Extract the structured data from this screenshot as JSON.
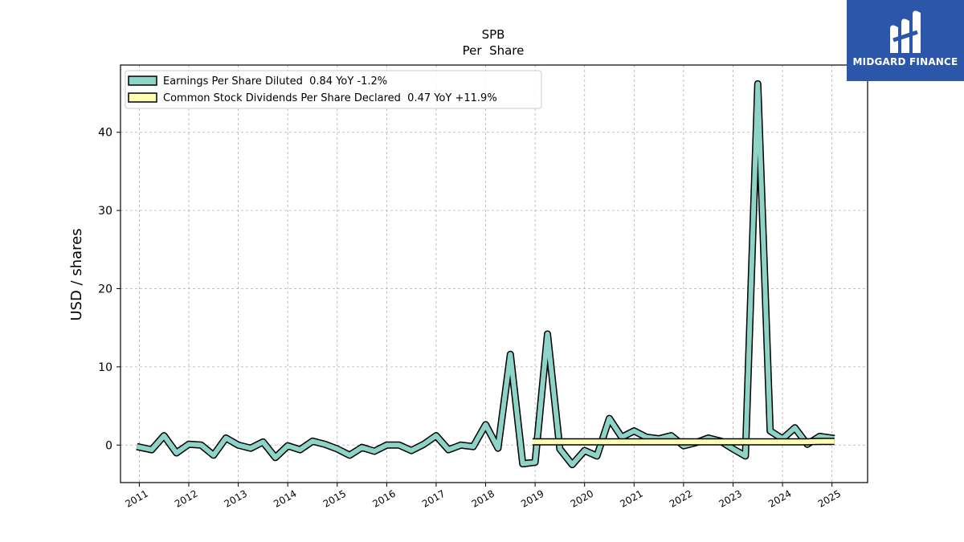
{
  "brand": {
    "name": "MIDGARD FINANCE",
    "color": "#2b56aa"
  },
  "chart_data": {
    "type": "line",
    "title": "SPB",
    "subtitle": "Per  Share",
    "xlabel": "",
    "ylabel": "USD / shares",
    "xlim": [
      2010.62,
      2025.72
    ],
    "ylim": [
      -4.8,
      48.6
    ],
    "yticks": [
      0,
      10,
      20,
      30,
      40
    ],
    "xticks": [
      2011,
      2012,
      2013,
      2014,
      2015,
      2016,
      2017,
      2018,
      2019,
      2020,
      2021,
      2022,
      2023,
      2024,
      2025
    ],
    "grid": true,
    "legend_position": "top-left",
    "series": [
      {
        "name": "Earnings Per Share Diluted  0.84 YoY -1.2%",
        "color": "#8dd3c7",
        "x": [
          2010.95,
          2011.25,
          2011.5,
          2011.75,
          2012.0,
          2012.25,
          2012.5,
          2012.75,
          2013.0,
          2013.25,
          2013.5,
          2013.75,
          2014.0,
          2014.25,
          2014.5,
          2014.75,
          2015.0,
          2015.25,
          2015.5,
          2015.75,
          2016.0,
          2016.25,
          2016.5,
          2016.75,
          2017.0,
          2017.25,
          2017.5,
          2017.75,
          2018.0,
          2018.25,
          2018.5,
          2018.75,
          2019.0,
          2019.25,
          2019.5,
          2019.75,
          2020.0,
          2020.25,
          2020.5,
          2020.75,
          2021.0,
          2021.25,
          2021.5,
          2021.75,
          2022.0,
          2022.25,
          2022.5,
          2022.75,
          2023.0,
          2023.25,
          2023.5,
          2023.75,
          2024.0,
          2024.25,
          2024.5,
          2024.75,
          2025.05
        ],
        "values": [
          -0.2,
          -0.6,
          1.2,
          -1.0,
          0.1,
          0.0,
          -1.3,
          0.9,
          0.0,
          -0.4,
          0.4,
          -1.6,
          -0.1,
          -0.6,
          0.5,
          0.1,
          -0.5,
          -1.3,
          -0.3,
          -0.8,
          0.0,
          0.0,
          -0.7,
          0.1,
          1.2,
          -0.6,
          0.0,
          -0.2,
          2.6,
          -0.4,
          11.6,
          -2.4,
          -2.2,
          14.2,
          -0.5,
          -2.5,
          -0.7,
          -1.4,
          3.4,
          1.0,
          1.8,
          1.0,
          0.8,
          1.2,
          -0.1,
          0.3,
          0.9,
          0.5,
          -0.5,
          -1.4,
          46.2,
          1.8,
          0.8,
          2.2,
          0.1,
          1.1,
          0.84
        ]
      },
      {
        "name": "Common Stock Dividends Per Share Declared  0.47 YoY +11.9%",
        "color": "#ffffb3",
        "x": [
          2018.95,
          2019.25,
          2019.5,
          2019.75,
          2020.0,
          2020.25,
          2020.5,
          2020.75,
          2021.0,
          2021.25,
          2021.5,
          2021.75,
          2022.0,
          2022.25,
          2022.5,
          2022.75,
          2023.0,
          2023.25,
          2023.5,
          2023.75,
          2024.0,
          2024.25,
          2024.5,
          2024.75,
          2025.05
        ],
        "values": [
          0.42,
          0.42,
          0.42,
          0.42,
          0.42,
          0.42,
          0.42,
          0.42,
          0.42,
          0.42,
          0.42,
          0.42,
          0.42,
          0.42,
          0.42,
          0.42,
          0.42,
          0.42,
          0.42,
          0.42,
          0.42,
          0.42,
          0.42,
          0.47,
          0.47
        ]
      }
    ]
  }
}
